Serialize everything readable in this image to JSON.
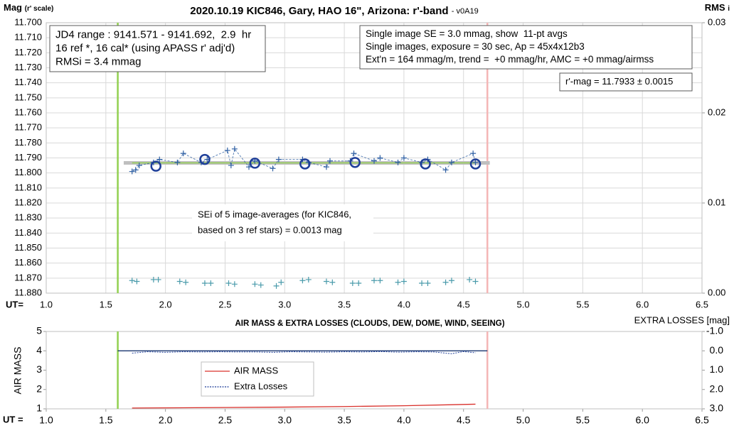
{
  "chart_data": [
    {
      "type": "scatter",
      "title": "2020.10.19 KIC846, Gary, HAO 16\", Arizona: r'-band",
      "title_note": "- v0A19",
      "y_label": "Mag",
      "y_label_note": "(r' scale)",
      "y2_label": "RMS",
      "y2_label_note": "i",
      "x_label": "UT=",
      "xlim": [
        1,
        6.5
      ],
      "xticks": [
        {
          "value": 1,
          "label": "1.0"
        },
        1.5,
        {
          "value": 2,
          "label": "2.0"
        },
        2.5,
        {
          "value": 3,
          "label": "3.0"
        },
        3.5,
        {
          "value": 4,
          "label": "4.0"
        },
        4.5,
        {
          "value": 5,
          "label": "5.0"
        },
        5.5,
        {
          "value": 6,
          "label": "6.0"
        },
        6.5
      ],
      "ylim": [
        11.7,
        11.88
      ],
      "y_inverted": true,
      "yticks": [
        {
          "value": 11.7,
          "label": "11.700"
        },
        {
          "value": 11.71,
          "label": "11.710"
        },
        {
          "value": 11.72,
          "label": "11.720"
        },
        {
          "value": 11.73,
          "label": "11.730"
        },
        {
          "value": 11.74,
          "label": "11.740"
        },
        {
          "value": 11.75,
          "label": "11.750"
        },
        {
          "value": 11.76,
          "label": "11.760"
        },
        {
          "value": 11.77,
          "label": "11.770"
        },
        {
          "value": 11.78,
          "label": "11.780"
        },
        {
          "value": 11.79,
          "label": "11.790"
        },
        {
          "value": 11.8,
          "label": "11.800"
        },
        {
          "value": 11.81,
          "label": "11.810"
        },
        {
          "value": 11.82,
          "label": "11.820"
        },
        {
          "value": 11.83,
          "label": "11.830"
        },
        {
          "value": 11.84,
          "label": "11.840"
        },
        {
          "value": 11.85,
          "label": "11.850"
        },
        {
          "value": 11.86,
          "label": "11.860"
        },
        {
          "value": 11.87,
          "label": "11.870"
        },
        {
          "value": 11.88,
          "label": "11.880"
        }
      ],
      "y2lim": [
        0,
        0.03
      ],
      "y2ticks": [
        {
          "value": 0,
          "label": "0.00"
        },
        0.01,
        0.02,
        0.03
      ],
      "grid": true,
      "vlines": [
        {
          "x": 1.6,
          "color": "#92d050"
        },
        {
          "x": 4.7,
          "color": "#f4b6b6"
        }
      ],
      "reference_lines": [
        {
          "x": [
            1.65,
            4.72
          ],
          "y": 11.7933,
          "color": "#bfbfbf",
          "width": 5
        },
        {
          "x": [
            1.72,
            4.6
          ],
          "y": 11.7933,
          "color": "#92d050",
          "width": 1.5
        }
      ],
      "series": [
        {
          "marker": "plus",
          "line": "dashed",
          "color": "#2e5fa3",
          "x": [
            1.72,
            1.75,
            1.78,
            1.9,
            1.95,
            2.1,
            2.15,
            2.3,
            2.35,
            2.52,
            2.55,
            2.58,
            2.7,
            2.75,
            2.9,
            2.95,
            3.15,
            3.2,
            3.35,
            3.38,
            3.55,
            3.58,
            3.75,
            3.8,
            3.95,
            4.0,
            4.15,
            4.2,
            4.35,
            4.4,
            4.58,
            4.6
          ],
          "values": [
            11.799,
            11.798,
            11.795,
            11.793,
            11.791,
            11.793,
            11.787,
            11.793,
            11.791,
            11.785,
            11.795,
            11.784,
            11.796,
            11.792,
            11.797,
            11.791,
            11.791,
            11.793,
            11.796,
            11.792,
            11.792,
            11.787,
            11.792,
            11.79,
            11.793,
            11.79,
            11.793,
            11.791,
            11.798,
            11.793,
            11.787,
            11.793
          ]
        },
        {
          "marker": "circle",
          "line": "none",
          "color": "#1f3f99",
          "x": [
            1.92,
            2.33,
            2.75,
            3.17,
            3.59,
            4.18,
            4.6
          ],
          "values": [
            11.7955,
            11.791,
            11.7935,
            11.794,
            11.793,
            11.794,
            11.794
          ]
        },
        {
          "marker": "plus",
          "line": "none",
          "color": "#4a9bab",
          "axis": "y2",
          "x": [
            1.72,
            1.76,
            1.9,
            1.94,
            2.12,
            2.17,
            2.33,
            2.38,
            2.53,
            2.58,
            2.75,
            2.8,
            2.93,
            2.97,
            3.15,
            3.2,
            3.35,
            3.4,
            3.57,
            3.62,
            3.75,
            3.8,
            3.95,
            4.0,
            4.15,
            4.2,
            4.35,
            4.4,
            4.55,
            4.6
          ],
          "values": [
            0.0014,
            0.0013,
            0.0015,
            0.0015,
            0.0013,
            0.0012,
            0.0011,
            0.0011,
            0.0011,
            0.001,
            0.001,
            0.0009,
            0.0008,
            0.0012,
            0.0014,
            0.0015,
            0.0013,
            0.0012,
            0.0011,
            0.0011,
            0.0014,
            0.0014,
            0.0012,
            0.0013,
            0.0011,
            0.0011,
            0.0012,
            0.0014,
            0.0015,
            0.0013
          ]
        }
      ],
      "annotations": [
        {
          "lines": [
            "JD4 range : 9141.571 - 9141.692,  2.9  hr",
            "16 ref *, 16 cal* (using APASS r' adj'd)",
            "RMSi = 3.4 mmag"
          ],
          "border": true
        },
        {
          "lines": [
            "Single image SE = 3.0 mmag, show  11-pt avgs",
            "Single images, exposure = 30 sec, Ap = 45x4x12b3",
            "Ext'n = 164 mmag/m, trend =  +0 mmag/hr, AMC = +0 mmag/airmss"
          ],
          "border": true
        },
        {
          "lines": [
            "r'-mag = 11.7933 ± 0.0015"
          ],
          "border": true
        },
        {
          "lines": [
            "SEi of 5 image-averages (for KIC846,",
            "based on 3 ref stars) = 0.0013 mag"
          ],
          "border": false
        }
      ]
    },
    {
      "type": "line",
      "title": "AIR MASS & EXTRA LOSSES (CLOUDS, DEW, DOME, WIND, SEEING)",
      "y_label": "AIR MASS",
      "y2_label": "EXTRA LOSSES [mag]",
      "x_label": "UT =",
      "xlim": [
        1,
        6.5
      ],
      "xticks": [
        {
          "value": 1,
          "label": "1.0"
        },
        1.5,
        {
          "value": 2,
          "label": "2.0"
        },
        2.5,
        {
          "value": 3,
          "label": "3.0"
        },
        3.5,
        {
          "value": 4,
          "label": "4.0"
        },
        4.5,
        {
          "value": 5,
          "label": "5.0"
        },
        5.5,
        {
          "value": 6,
          "label": "6.0"
        },
        6.5
      ],
      "ylim": [
        1,
        5
      ],
      "yticks": [
        1,
        2,
        3,
        4,
        5
      ],
      "y2lim": [
        -1,
        3
      ],
      "y2_inverted": true,
      "y2ticks": [
        {
          "value": -1,
          "label": "-1.0"
        },
        {
          "value": 0,
          "label": "0.0"
        },
        {
          "value": 1,
          "label": "1.0"
        },
        {
          "value": 2,
          "label": "2.0"
        },
        {
          "value": 3,
          "label": "3.0"
        }
      ],
      "grid": false,
      "legend": "center-left",
      "vlines": [
        {
          "x": 1.6,
          "color": "#92d050"
        },
        {
          "x": 4.7,
          "color": "#f4b6b6"
        }
      ],
      "reference_lines": [
        {
          "x": [
            1.6,
            4.7
          ],
          "y": 0,
          "axis": "y2",
          "color": "#002060",
          "width": 1.2
        }
      ],
      "series": [
        {
          "name": "AIR MASS",
          "marker": "none",
          "line": "solid",
          "color": "#d9302b",
          "x": [
            1.72,
            2.0,
            2.5,
            3.0,
            3.5,
            4.0,
            4.6
          ],
          "values": [
            1.04,
            1.05,
            1.07,
            1.09,
            1.12,
            1.16,
            1.24
          ]
        },
        {
          "name": "Extra Losses",
          "marker": "none",
          "line": "dotted",
          "color": "#1f3f99",
          "axis": "y2",
          "x": [
            1.72,
            1.85,
            2.0,
            2.15,
            2.3,
            2.45,
            2.6,
            2.75,
            2.9,
            3.05,
            3.2,
            3.35,
            3.5,
            3.65,
            3.8,
            3.95,
            4.1,
            4.25,
            4.4,
            4.5,
            4.6
          ],
          "values": [
            0.12,
            0.05,
            0.08,
            0.05,
            0.06,
            0.05,
            0.06,
            0.06,
            0.08,
            0.05,
            0.06,
            0.07,
            0.05,
            0.06,
            0.04,
            0.07,
            0.05,
            0.06,
            0.15,
            0.04,
            0.1
          ]
        }
      ]
    }
  ]
}
